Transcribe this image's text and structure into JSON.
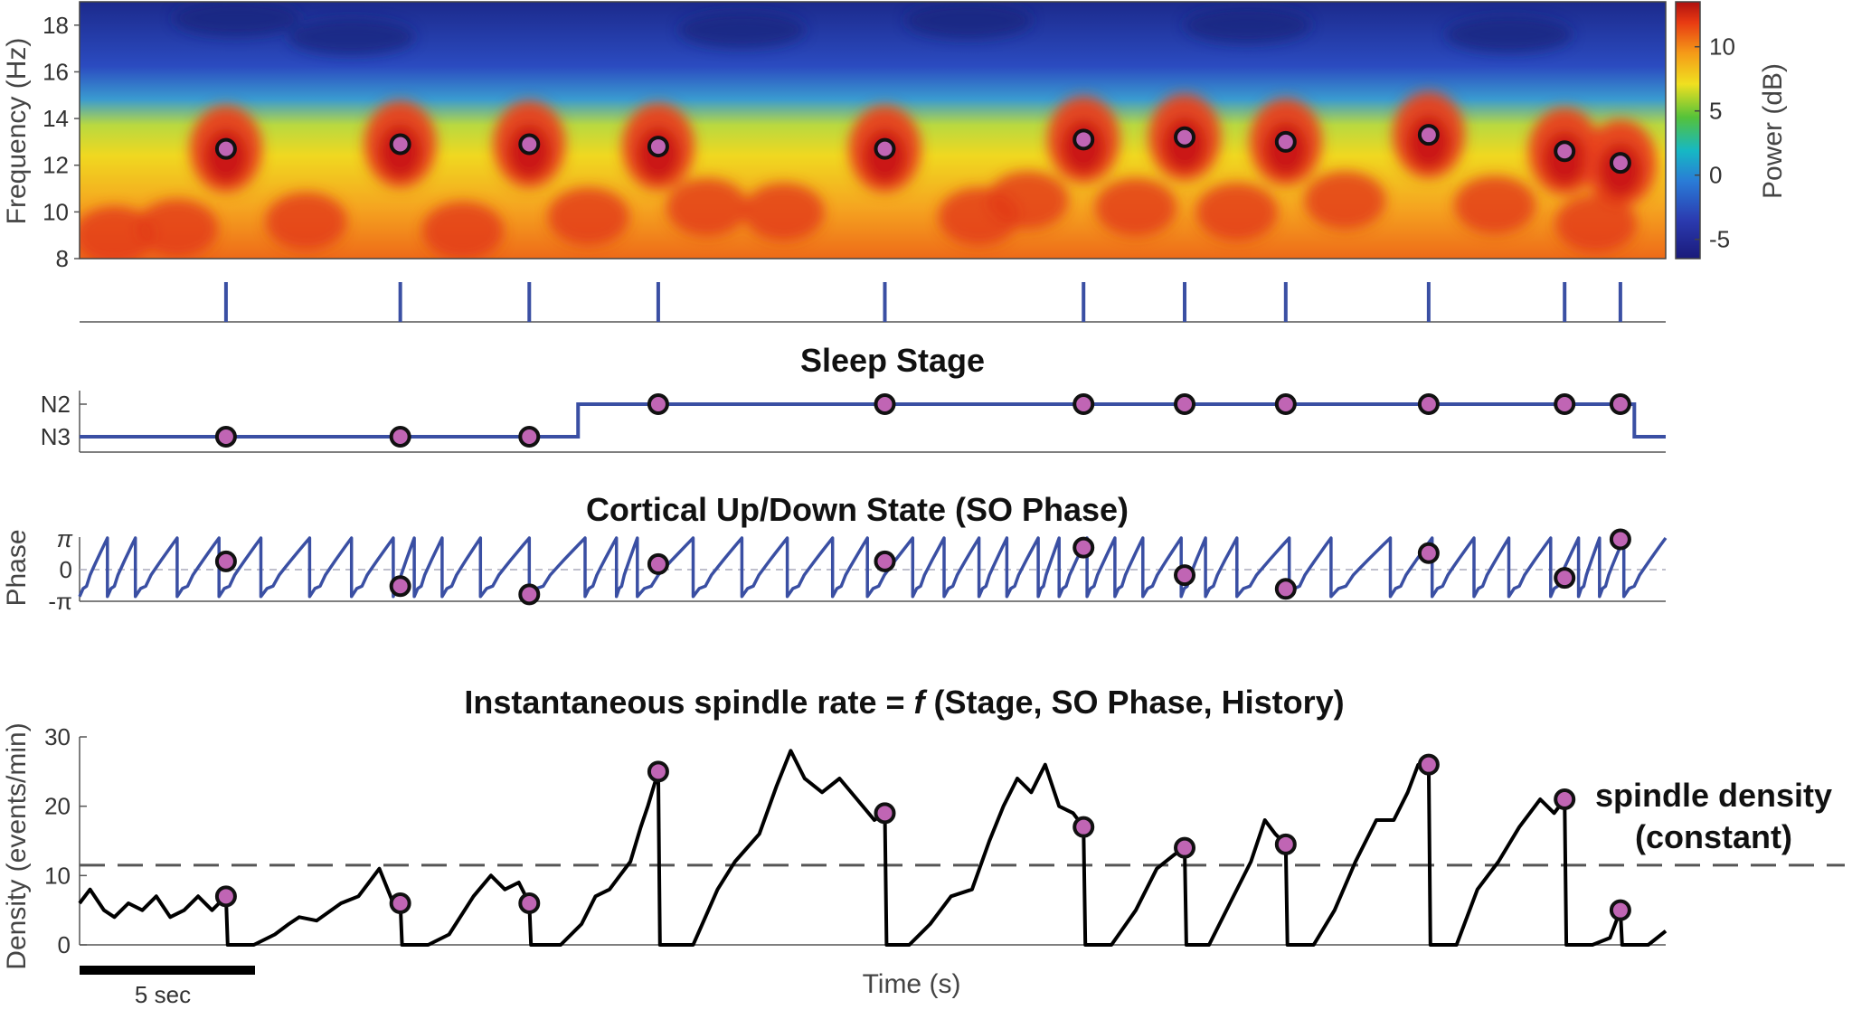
{
  "colors": {
    "series": "#3a4fa3",
    "density": "#000000",
    "marker_fill": "#c065b4",
    "marker_stroke": "#111111",
    "dashed": "#555555"
  },
  "spectrogram": {
    "ylabel": "Frequency (Hz)",
    "yticks": [
      "8",
      "10",
      "12",
      "14",
      "16",
      "18"
    ],
    "colorbar_label": "Power (dB)",
    "colorbar_ticks": [
      "-5",
      "0",
      "5",
      "10"
    ],
    "colormap": "jet"
  },
  "sleep_stage": {
    "title": "Sleep Stage",
    "ytick_labels": [
      "N2",
      "N3"
    ]
  },
  "so_phase": {
    "title": "Cortical Up/Down State (SO Phase)",
    "ylabel": "Phase",
    "ytick_labels": [
      "π",
      "0",
      "-π"
    ]
  },
  "density_panel": {
    "title_pre": "Instantaneous spindle rate = ",
    "title_f": "f",
    "title_post": " (Stage, SO Phase, History)",
    "ylabel": "Density (events/min)",
    "yticks": [
      "0",
      "10",
      "20",
      "30"
    ],
    "xlabel": "Time (s)",
    "annotation_line1": "spindle density",
    "annotation_line2": "(constant)",
    "scalebar_label": "5 sec"
  },
  "chart_data": {
    "type": "line",
    "x_unit": "s",
    "xlim": [
      0,
      45.5
    ],
    "scalebar_seconds": 5,
    "spindles": [
      {
        "t": 4.2,
        "freq_hz": 12.7,
        "stage": "N3",
        "so_phase": 0.3,
        "density": 7
      },
      {
        "t": 9.2,
        "freq_hz": 12.9,
        "stage": "N3",
        "so_phase": -0.6,
        "density": 6
      },
      {
        "t": 12.9,
        "freq_hz": 12.9,
        "stage": "N3",
        "so_phase": -0.9,
        "density": 6
      },
      {
        "t": 16.6,
        "freq_hz": 12.8,
        "stage": "N2",
        "so_phase": 0.2,
        "density": 25
      },
      {
        "t": 23.1,
        "freq_hz": 12.7,
        "stage": "N2",
        "so_phase": 0.3,
        "density": 19
      },
      {
        "t": 28.8,
        "freq_hz": 13.1,
        "stage": "N2",
        "so_phase": 0.8,
        "density": 17
      },
      {
        "t": 31.7,
        "freq_hz": 13.2,
        "stage": "N2",
        "so_phase": -0.2,
        "density": 14
      },
      {
        "t": 34.6,
        "freq_hz": 13.0,
        "stage": "N2",
        "so_phase": -0.7,
        "density": 14.5
      },
      {
        "t": 38.7,
        "freq_hz": 13.3,
        "stage": "N2",
        "so_phase": 0.6,
        "density": 26
      },
      {
        "t": 42.6,
        "freq_hz": 12.6,
        "stage": "N2",
        "so_phase": -0.3,
        "density": 21
      },
      {
        "t": 44.2,
        "freq_hz": 12.1,
        "stage": "N2",
        "so_phase": 1.1,
        "density": 5
      }
    ],
    "sleep_stage_segments": [
      {
        "t_start": 0,
        "t_end": 14.3,
        "stage": "N3"
      },
      {
        "t_start": 14.3,
        "t_end": 44.6,
        "stage": "N2"
      },
      {
        "t_start": 44.6,
        "t_end": 45.5,
        "stage": "N3"
      }
    ],
    "constant_spindle_density": 11.5,
    "density_ylim": [
      0,
      30
    ],
    "frequency_ylim": [
      8,
      19
    ],
    "colorbar_range_db": [
      -6.5,
      13.5
    ],
    "density_curve": {
      "x": [
        0,
        0.3,
        0.7,
        1.0,
        1.4,
        1.8,
        2.2,
        2.6,
        3.0,
        3.4,
        3.8,
        4.0,
        4.2,
        4.25,
        5.0,
        5.6,
        6.0,
        6.3,
        6.8,
        7.5,
        8.0,
        8.3,
        8.6,
        9.0,
        9.2,
        9.25,
        10.0,
        10.6,
        11.3,
        11.8,
        12.2,
        12.6,
        12.9,
        12.95,
        13.8,
        14.4,
        14.8,
        15.2,
        15.5,
        15.8,
        16.1,
        16.3,
        16.6,
        16.65,
        17.6,
        18.3,
        18.8,
        19.5,
        20.0,
        20.4,
        20.8,
        21.3,
        21.8,
        22.3,
        22.8,
        23.1,
        23.15,
        23.8,
        24.4,
        25.0,
        25.6,
        26.1,
        26.5,
        26.9,
        27.3,
        27.7,
        28.1,
        28.5,
        28.8,
        28.85,
        29.6,
        30.3,
        30.9,
        31.4,
        31.7,
        31.75,
        32.4,
        33.0,
        33.6,
        34.0,
        34.3,
        34.6,
        34.65,
        35.4,
        36.0,
        36.6,
        37.2,
        37.7,
        38.1,
        38.4,
        38.7,
        38.75,
        39.5,
        40.1,
        40.7,
        41.3,
        41.9,
        42.3,
        42.6,
        42.65,
        43.4,
        43.9,
        44.2,
        44.25,
        45.0,
        45.5
      ],
      "y": [
        6,
        8,
        5,
        4,
        6,
        5,
        7,
        4,
        5,
        7,
        5,
        6,
        7,
        0,
        0,
        1.5,
        3,
        4,
        3.5,
        6,
        7,
        9,
        11,
        6,
        6,
        0,
        0,
        1.5,
        7,
        10,
        8,
        9,
        6,
        0,
        0,
        3,
        7,
        8,
        10,
        12,
        17,
        20,
        25,
        0,
        0,
        8,
        12,
        16,
        23,
        28,
        24,
        22,
        24,
        21,
        18,
        19,
        0,
        0,
        3,
        7,
        8,
        15,
        20,
        24,
        22,
        26,
        20,
        19,
        17,
        0,
        0,
        5,
        11,
        13,
        14,
        0,
        0,
        6,
        12,
        18,
        16,
        14.5,
        0,
        0,
        5,
        12,
        18,
        18,
        22,
        26,
        26,
        0,
        0,
        8,
        12,
        17,
        21,
        19,
        21,
        0,
        0,
        1,
        5,
        0,
        0,
        2
      ]
    },
    "so_phase_curve": {
      "note": "sawtooth from -π to π",
      "y_range": [
        -3.1416,
        3.1416
      ]
    }
  }
}
